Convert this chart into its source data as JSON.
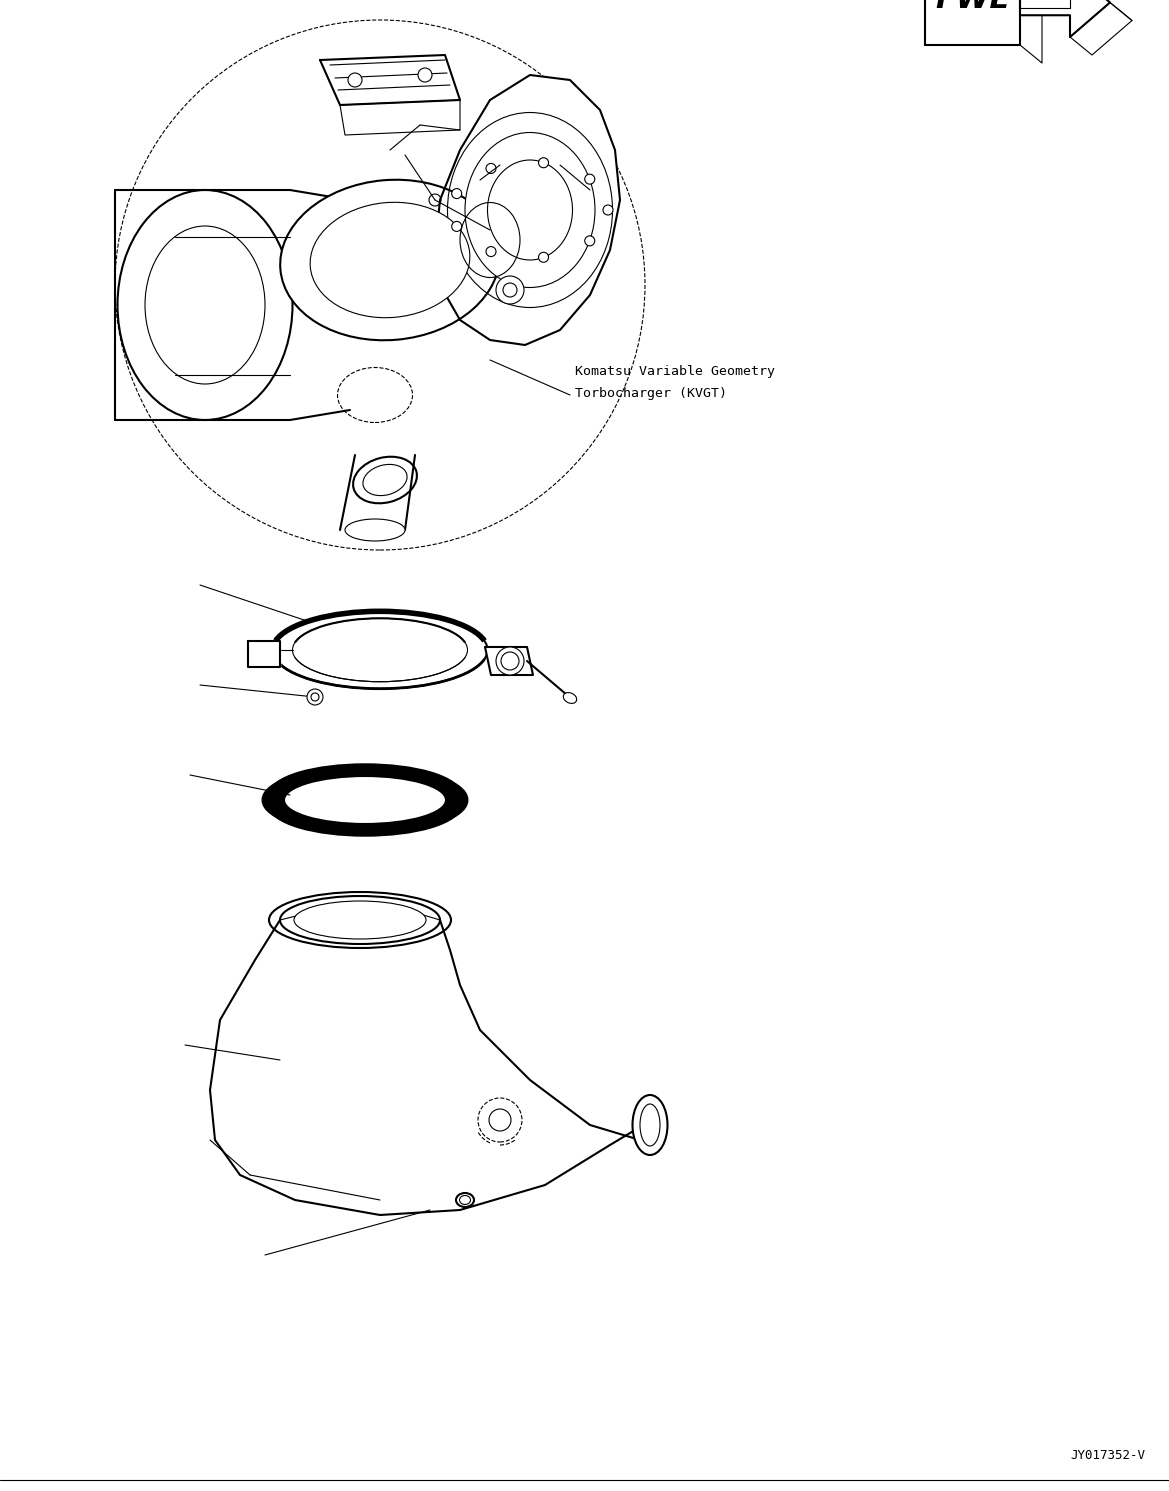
{
  "background_color": "#ffffff",
  "line_color": "#000000",
  "annotation_text_1": "Komatsu Variable Geometry",
  "annotation_text_2": "Torbocharger (KVGT)",
  "watermark": "JY017352-V",
  "fig_width": 11.69,
  "fig_height": 14.91,
  "dpi": 100
}
